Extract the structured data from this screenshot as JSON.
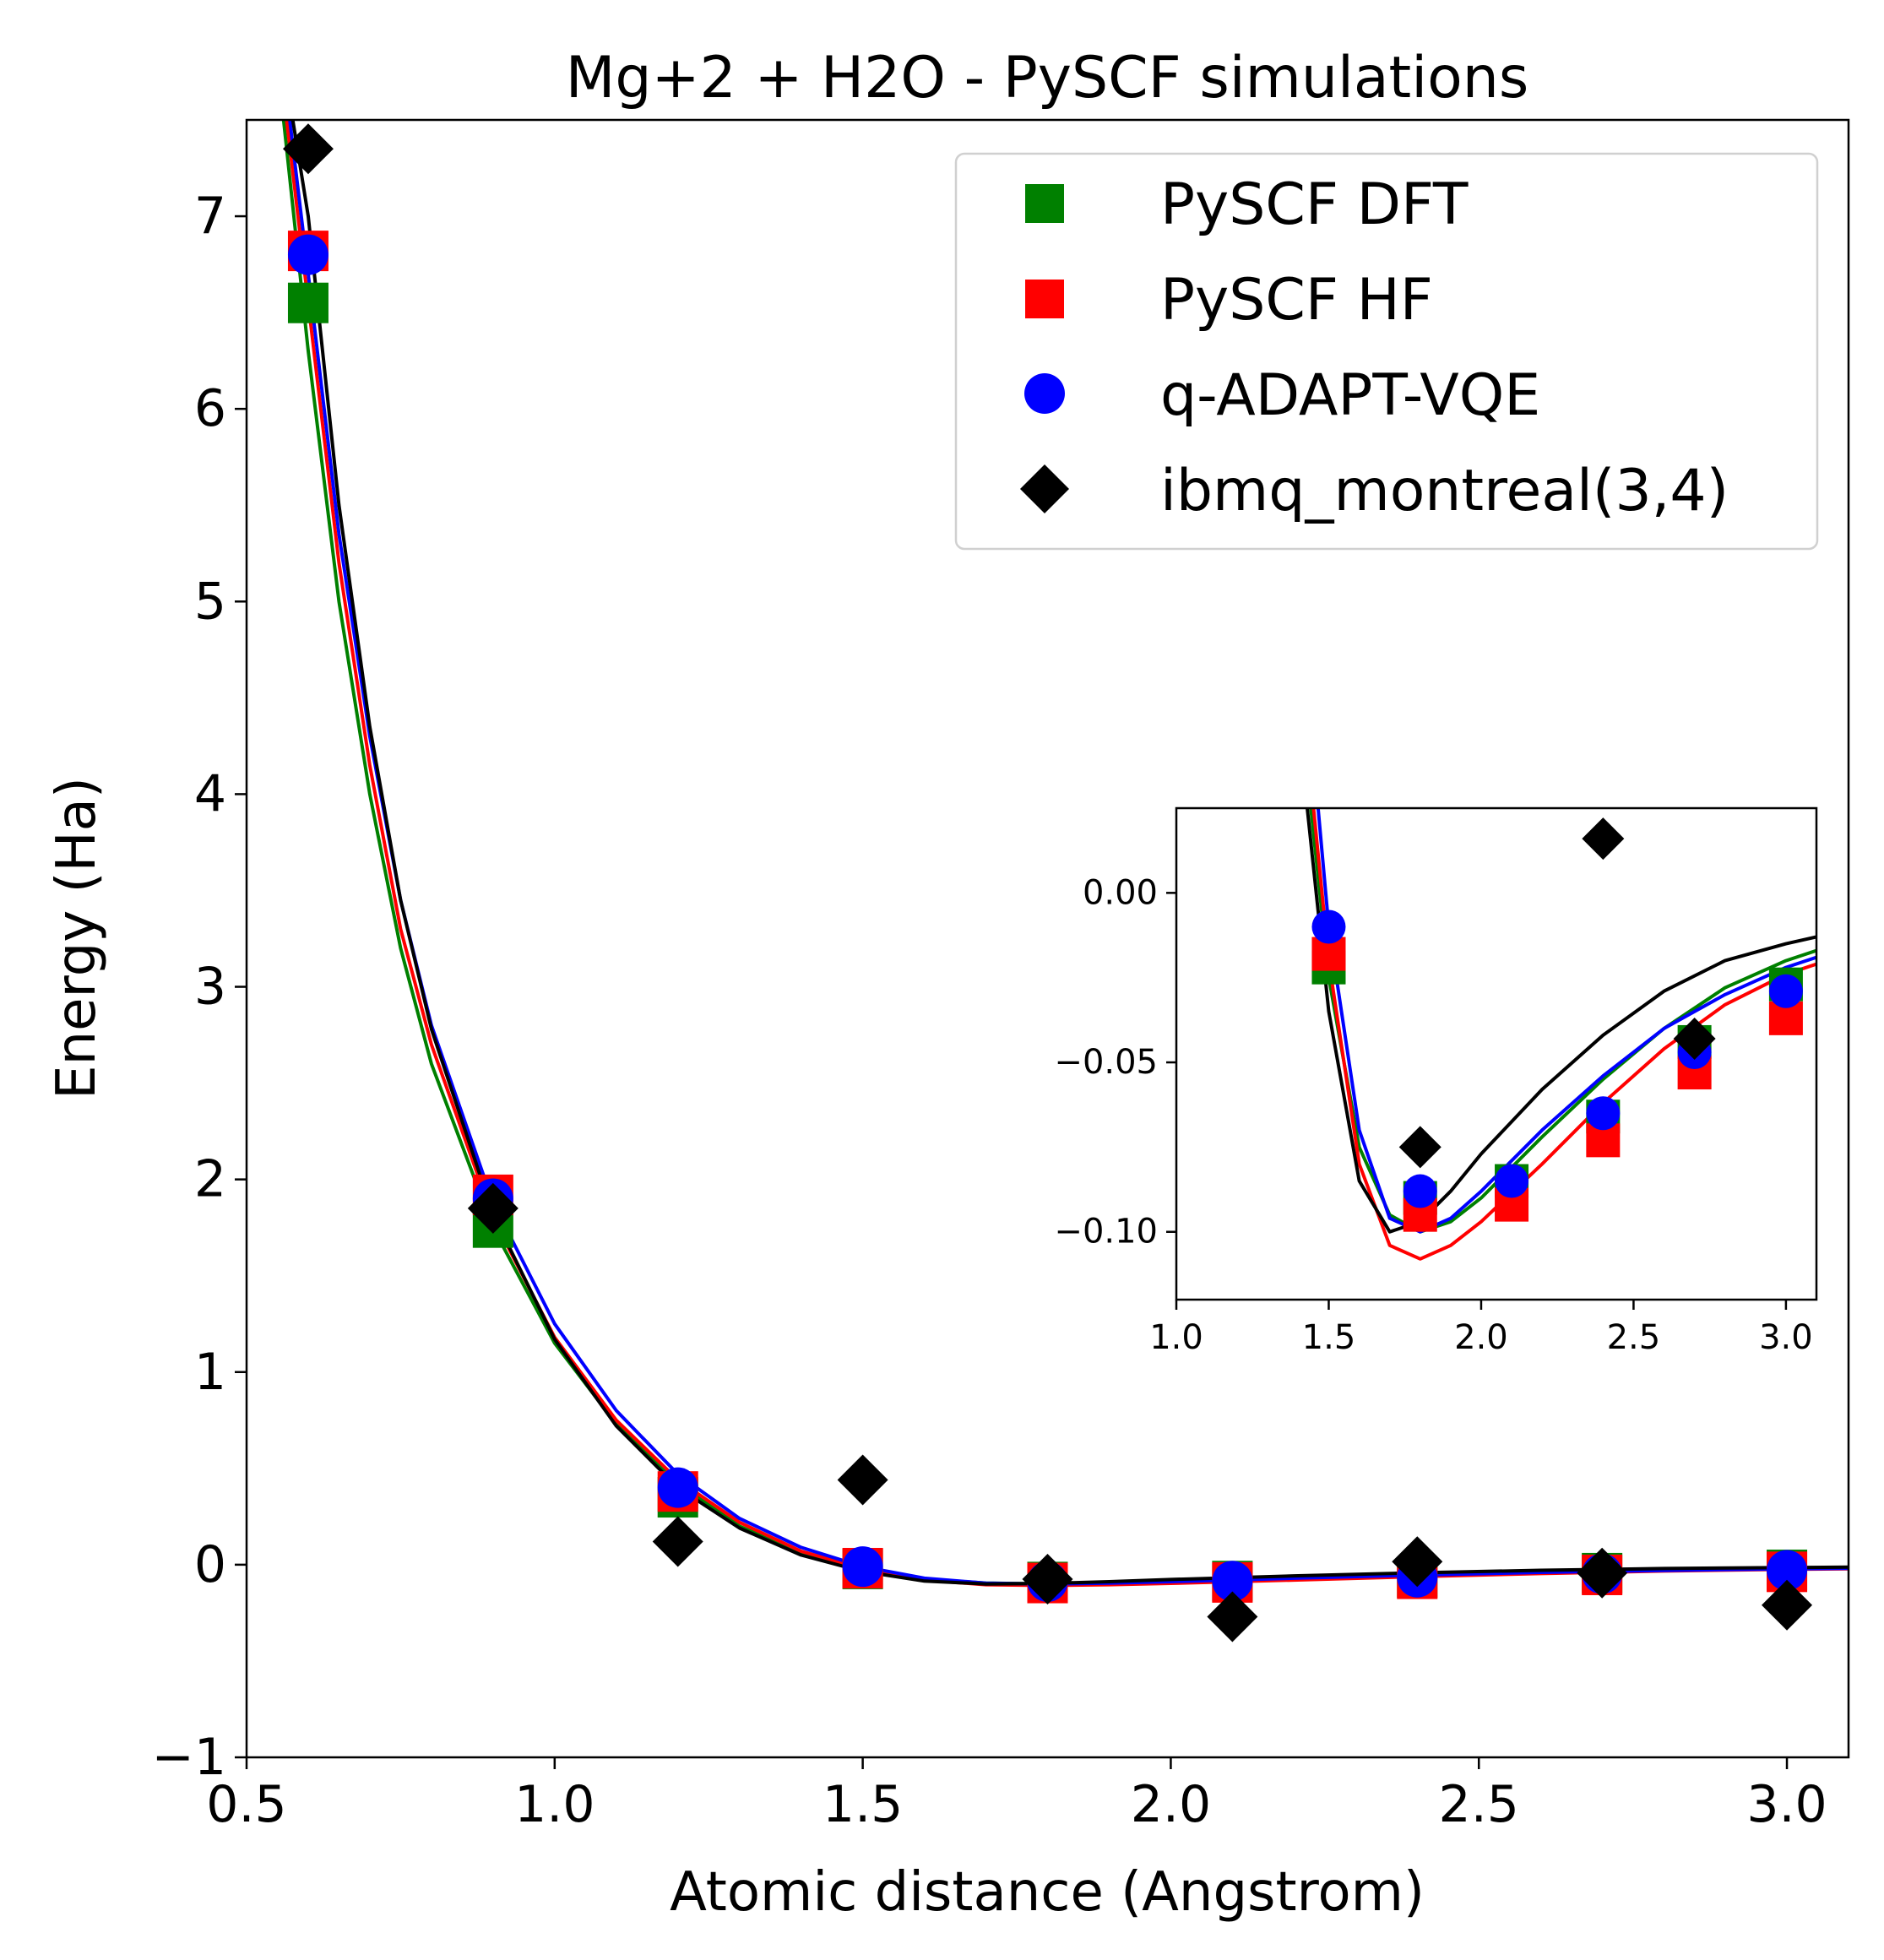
{
  "chart_data": [
    {
      "type": "scatter",
      "title": "Mg+2 + H2O - PySCF simulations",
      "xlabel": "Atomic distance (Angstrom)",
      "ylabel": "Energy (Ha)",
      "xlim": [
        0.5,
        3.1
      ],
      "ylim": [
        -1,
        7.5
      ],
      "xticks": [
        0.5,
        1.0,
        1.5,
        2.0,
        2.5,
        3.0
      ],
      "xtick_labels": [
        "0.5",
        "1.0",
        "1.5",
        "2.0",
        "2.5",
        "3.0"
      ],
      "yticks": [
        -1,
        0,
        1,
        2,
        3,
        4,
        5,
        6,
        7
      ],
      "ytick_labels": [
        "−1",
        "0",
        "1",
        "2",
        "3",
        "4",
        "5",
        "6",
        "7"
      ],
      "grid": false,
      "legend_position": "top-right",
      "series": [
        {
          "name": "PySCF DFT",
          "marker": "square",
          "color": "#008000",
          "x": [
            0.6,
            0.9,
            1.2,
            1.5,
            1.8,
            2.1,
            2.4,
            2.7,
            3.0
          ],
          "y": [
            6.55,
            1.75,
            0.35,
            -0.022,
            -0.09,
            -0.085,
            -0.066,
            -0.044,
            -0.027
          ]
        },
        {
          "name": "PySCF HF",
          "marker": "square",
          "color": "#ff0000",
          "x": [
            0.6,
            0.9,
            1.2,
            1.5,
            1.8,
            2.1,
            2.4,
            2.7,
            3.0
          ],
          "y": [
            6.82,
            1.92,
            0.38,
            -0.018,
            -0.095,
            -0.092,
            -0.073,
            -0.053,
            -0.037
          ]
        },
        {
          "name": "q-ADAPT-VQE",
          "marker": "circle",
          "color": "#0000ff",
          "x": [
            0.6,
            0.9,
            1.2,
            1.5,
            1.8,
            2.1,
            2.4,
            2.7,
            3.0
          ],
          "y": [
            6.8,
            1.9,
            0.4,
            -0.01,
            -0.088,
            -0.085,
            -0.065,
            -0.047,
            -0.029
          ]
        },
        {
          "name": "ibmq_montreal(3,4)",
          "marker": "diamond",
          "color": "#000000",
          "x": [
            0.6,
            0.9,
            1.2,
            1.5,
            1.8,
            2.1,
            2.4,
            2.7,
            3.0
          ],
          "y": [
            7.35,
            1.85,
            0.12,
            0.44,
            -0.075,
            -0.27,
            0.016,
            -0.043,
            -0.21
          ]
        }
      ],
      "fit_curves": [
        {
          "color": "#008000",
          "x": [
            0.56,
            0.6,
            0.65,
            0.7,
            0.75,
            0.8,
            0.9,
            1.0,
            1.1,
            1.2,
            1.3,
            1.4,
            1.5,
            1.6,
            1.7,
            1.8,
            1.9,
            2.0,
            2.2,
            2.4,
            2.6,
            2.8,
            3.0,
            3.1
          ],
          "y": [
            7.5,
            6.3,
            5.0,
            4.0,
            3.2,
            2.6,
            1.75,
            1.15,
            0.73,
            0.42,
            0.2,
            0.06,
            -0.025,
            -0.075,
            -0.095,
            -0.1,
            -0.097,
            -0.09,
            -0.072,
            -0.055,
            -0.04,
            -0.028,
            -0.02,
            -0.017
          ]
        },
        {
          "color": "#ff0000",
          "x": [
            0.565,
            0.6,
            0.65,
            0.7,
            0.75,
            0.8,
            0.9,
            1.0,
            1.1,
            1.2,
            1.3,
            1.4,
            1.5,
            1.6,
            1.7,
            1.8,
            1.9,
            2.0,
            2.2,
            2.4,
            2.6,
            2.8,
            3.0,
            3.1
          ],
          "y": [
            7.5,
            6.55,
            5.2,
            4.15,
            3.3,
            2.7,
            1.8,
            1.18,
            0.75,
            0.44,
            0.22,
            0.07,
            -0.02,
            -0.08,
            -0.104,
            -0.108,
            -0.104,
            -0.097,
            -0.08,
            -0.062,
            -0.046,
            -0.033,
            -0.024,
            -0.021
          ]
        },
        {
          "color": "#0000ff",
          "x": [
            0.57,
            0.6,
            0.65,
            0.7,
            0.75,
            0.8,
            0.9,
            1.0,
            1.1,
            1.2,
            1.3,
            1.4,
            1.5,
            1.6,
            1.7,
            1.8,
            1.9,
            2.0,
            2.2,
            2.4,
            2.6,
            2.8,
            3.0,
            3.1
          ],
          "y": [
            7.5,
            6.7,
            5.35,
            4.3,
            3.45,
            2.8,
            1.88,
            1.25,
            0.8,
            0.47,
            0.24,
            0.09,
            -0.01,
            -0.07,
            -0.096,
            -0.1,
            -0.096,
            -0.088,
            -0.07,
            -0.054,
            -0.04,
            -0.03,
            -0.022,
            -0.019
          ]
        },
        {
          "color": "#000000",
          "x": [
            0.575,
            0.6,
            0.65,
            0.7,
            0.75,
            0.8,
            0.9,
            1.0,
            1.1,
            1.2,
            1.3,
            1.4,
            1.5,
            1.6,
            1.7,
            1.8,
            1.9,
            2.0,
            2.2,
            2.4,
            2.6,
            2.8,
            3.0,
            3.1
          ],
          "y": [
            7.5,
            7.0,
            5.5,
            4.35,
            3.45,
            2.78,
            1.82,
            1.17,
            0.72,
            0.4,
            0.19,
            0.05,
            -0.035,
            -0.085,
            -0.1,
            -0.097,
            -0.088,
            -0.077,
            -0.058,
            -0.042,
            -0.029,
            -0.02,
            -0.015,
            -0.013
          ]
        }
      ]
    },
    {
      "type": "scatter",
      "role": "inset",
      "xlim": [
        1.0,
        3.1
      ],
      "ylim": [
        -0.12,
        0.025
      ],
      "xticks": [
        1.0,
        1.5,
        2.0,
        2.5,
        3.0
      ],
      "xtick_labels": [
        "1.0",
        "1.5",
        "2.0",
        "2.5",
        "3.0"
      ],
      "yticks": [
        0.0,
        -0.05,
        -0.1
      ],
      "ytick_labels": [
        "0.00",
        "−0.05",
        "−0.10"
      ],
      "grid": false
    }
  ]
}
